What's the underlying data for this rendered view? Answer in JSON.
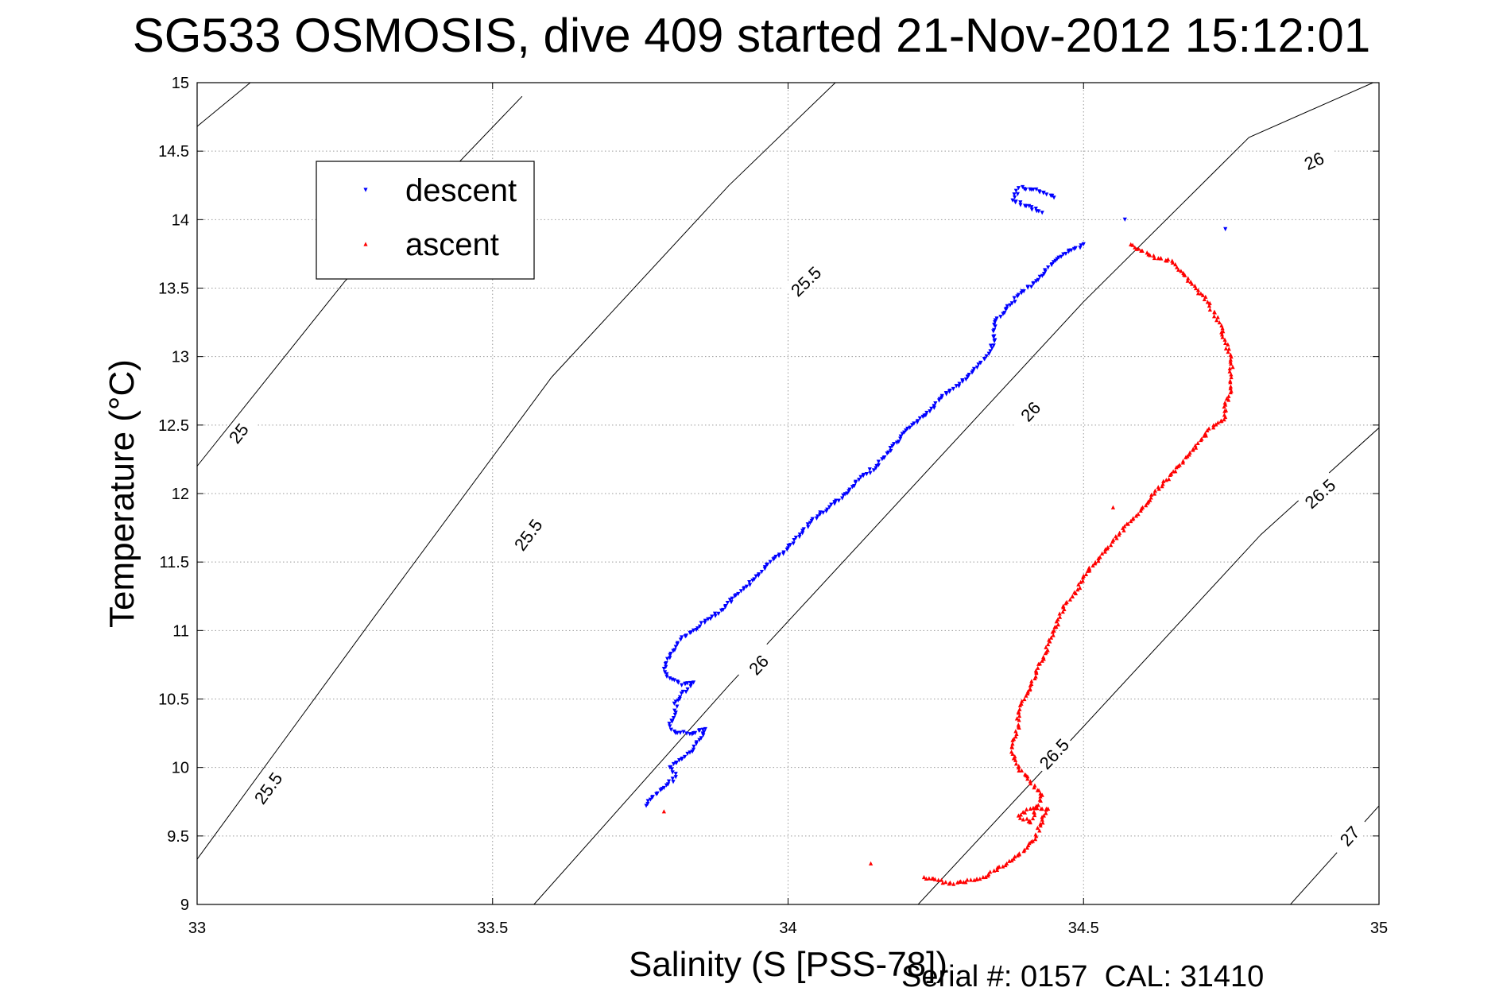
{
  "chart_data": {
    "type": "scatter",
    "title": "SG533 OSMOSIS, dive 409 started 21-Nov-2012 15:12:01",
    "xlabel": "Salinity (S [PSS-78])",
    "ylabel": "Temperature (°C)",
    "xlim": [
      33,
      35
    ],
    "ylim": [
      9,
      15
    ],
    "x_ticks": [
      "33",
      "33.5",
      "34",
      "34.5",
      "35"
    ],
    "y_ticks": [
      "9",
      "9.5",
      "10",
      "10.5",
      "11",
      "11.5",
      "12",
      "12.5",
      "13",
      "13.5",
      "14",
      "14.5",
      "15"
    ],
    "grid": true,
    "legend_position": "top-left",
    "footer": "Serial #: 0157  CAL: 31410",
    "density_contours": [
      {
        "label": "25",
        "points": [
          [
            33.0,
            14.68
          ],
          [
            33.09,
            15.0
          ]
        ],
        "label_points": []
      },
      {
        "label": "25",
        "points": [
          [
            33.0,
            12.2
          ],
          [
            33.25,
            13.55
          ],
          [
            33.55,
            14.9
          ]
        ],
        "label_points": [
          [
            33.07,
            12.44
          ]
        ]
      },
      {
        "label": "25.5",
        "points": [
          [
            33.0,
            9.33
          ],
          [
            33.3,
            11.1
          ],
          [
            33.6,
            12.85
          ],
          [
            33.9,
            14.25
          ],
          [
            34.08,
            15.0
          ]
        ],
        "label_points": [
          [
            33.12,
            9.85
          ],
          [
            33.56,
            11.7
          ],
          [
            34.03,
            13.55
          ]
        ]
      },
      {
        "label": "26",
        "points": [
          [
            33.57,
            9.0
          ],
          [
            33.9,
            10.6
          ],
          [
            34.2,
            12.0
          ],
          [
            34.5,
            13.4
          ],
          [
            34.78,
            14.6
          ],
          [
            34.99,
            15.0
          ]
        ],
        "label_points": [
          [
            33.95,
            10.75
          ],
          [
            34.41,
            12.6
          ],
          [
            34.89,
            14.43
          ]
        ]
      },
      {
        "label": "26.5",
        "points": [
          [
            34.22,
            9.0
          ],
          [
            34.5,
            10.3
          ],
          [
            34.8,
            11.7
          ],
          [
            35.0,
            12.48
          ]
        ],
        "label_points": [
          [
            34.45,
            10.1
          ],
          [
            34.9,
            12.0
          ]
        ]
      },
      {
        "label": "27",
        "points": [
          [
            34.85,
            9.0
          ],
          [
            35.0,
            9.72
          ]
        ],
        "label_points": [
          [
            34.95,
            9.5
          ]
        ]
      }
    ],
    "series": [
      {
        "name": "descent",
        "color": "#0000ff",
        "marker": "triangle-down",
        "points": [
          [
            33.76,
            9.72
          ],
          [
            33.77,
            9.78
          ],
          [
            33.79,
            9.85
          ],
          [
            33.81,
            9.93
          ],
          [
            33.8,
            10.0
          ],
          [
            33.82,
            10.06
          ],
          [
            33.84,
            10.13
          ],
          [
            33.85,
            10.2
          ],
          [
            33.86,
            10.28
          ],
          [
            33.84,
            10.25
          ],
          [
            33.81,
            10.25
          ],
          [
            33.8,
            10.3
          ],
          [
            33.81,
            10.4
          ],
          [
            33.81,
            10.48
          ],
          [
            33.83,
            10.57
          ],
          [
            33.84,
            10.62
          ],
          [
            33.82,
            10.6
          ],
          [
            33.8,
            10.65
          ],
          [
            33.79,
            10.72
          ],
          [
            33.8,
            10.8
          ],
          [
            33.81,
            10.88
          ],
          [
            33.82,
            10.95
          ],
          [
            33.84,
            11.0
          ],
          [
            33.86,
            11.07
          ],
          [
            33.89,
            11.15
          ],
          [
            33.91,
            11.25
          ],
          [
            33.93,
            11.32
          ],
          [
            33.95,
            11.4
          ],
          [
            33.97,
            11.5
          ],
          [
            34.0,
            11.6
          ],
          [
            34.02,
            11.7
          ],
          [
            34.04,
            11.8
          ],
          [
            34.07,
            11.9
          ],
          [
            34.1,
            12.0
          ],
          [
            34.12,
            12.1
          ],
          [
            34.15,
            12.2
          ],
          [
            34.17,
            12.3
          ],
          [
            34.19,
            12.4
          ],
          [
            34.21,
            12.5
          ],
          [
            34.24,
            12.6
          ],
          [
            34.26,
            12.7
          ],
          [
            34.29,
            12.8
          ],
          [
            34.32,
            12.92
          ],
          [
            34.34,
            13.02
          ],
          [
            34.35,
            13.12
          ],
          [
            34.35,
            13.25
          ],
          [
            34.37,
            13.35
          ],
          [
            34.39,
            13.45
          ],
          [
            34.42,
            13.55
          ],
          [
            34.44,
            13.65
          ],
          [
            34.47,
            13.75
          ],
          [
            34.5,
            13.82
          ],
          [
            34.45,
            14.16
          ],
          [
            34.42,
            14.22
          ],
          [
            34.39,
            14.23
          ],
          [
            34.38,
            14.14
          ],
          [
            34.43,
            14.05
          ],
          [
            34.57,
            14.0
          ],
          [
            34.74,
            13.93
          ]
        ]
      },
      {
        "name": "ascent",
        "color": "#ff0000",
        "marker": "triangle-up",
        "points": [
          [
            33.79,
            9.68
          ],
          [
            34.14,
            9.3
          ],
          [
            34.23,
            9.2
          ],
          [
            34.28,
            9.15
          ],
          [
            34.33,
            9.2
          ],
          [
            34.37,
            9.3
          ],
          [
            34.4,
            9.4
          ],
          [
            34.42,
            9.5
          ],
          [
            34.43,
            9.62
          ],
          [
            34.44,
            9.7
          ],
          [
            34.41,
            9.7
          ],
          [
            34.39,
            9.65
          ],
          [
            34.41,
            9.6
          ],
          [
            34.43,
            9.8
          ],
          [
            34.41,
            9.9
          ],
          [
            34.39,
            10.0
          ],
          [
            34.38,
            10.1
          ],
          [
            34.38,
            10.2
          ],
          [
            34.39,
            10.3
          ],
          [
            34.39,
            10.4
          ],
          [
            34.4,
            10.5
          ],
          [
            34.41,
            10.6
          ],
          [
            34.42,
            10.7
          ],
          [
            34.43,
            10.78
          ],
          [
            34.44,
            10.9
          ],
          [
            34.45,
            11.0
          ],
          [
            34.46,
            11.1
          ],
          [
            34.47,
            11.2
          ],
          [
            34.49,
            11.3
          ],
          [
            34.5,
            11.4
          ],
          [
            34.52,
            11.5
          ],
          [
            34.54,
            11.6
          ],
          [
            34.56,
            11.7
          ],
          [
            34.58,
            11.8
          ],
          [
            34.6,
            11.9
          ],
          [
            34.62,
            12.0
          ],
          [
            34.64,
            12.1
          ],
          [
            34.66,
            12.2
          ],
          [
            34.68,
            12.3
          ],
          [
            34.7,
            12.4
          ],
          [
            34.72,
            12.5
          ],
          [
            34.74,
            12.56
          ],
          [
            34.74,
            12.65
          ],
          [
            34.75,
            12.75
          ],
          [
            34.75,
            12.85
          ],
          [
            34.75,
            13.0
          ],
          [
            34.74,
            13.1
          ],
          [
            34.73,
            13.25
          ],
          [
            34.71,
            13.4
          ],
          [
            34.69,
            13.5
          ],
          [
            34.67,
            13.6
          ],
          [
            34.65,
            13.7
          ],
          [
            34.62,
            13.72
          ],
          [
            34.58,
            13.82
          ],
          [
            34.55,
            11.9
          ],
          [
            34.51,
            11.45
          ]
        ]
      }
    ]
  }
}
